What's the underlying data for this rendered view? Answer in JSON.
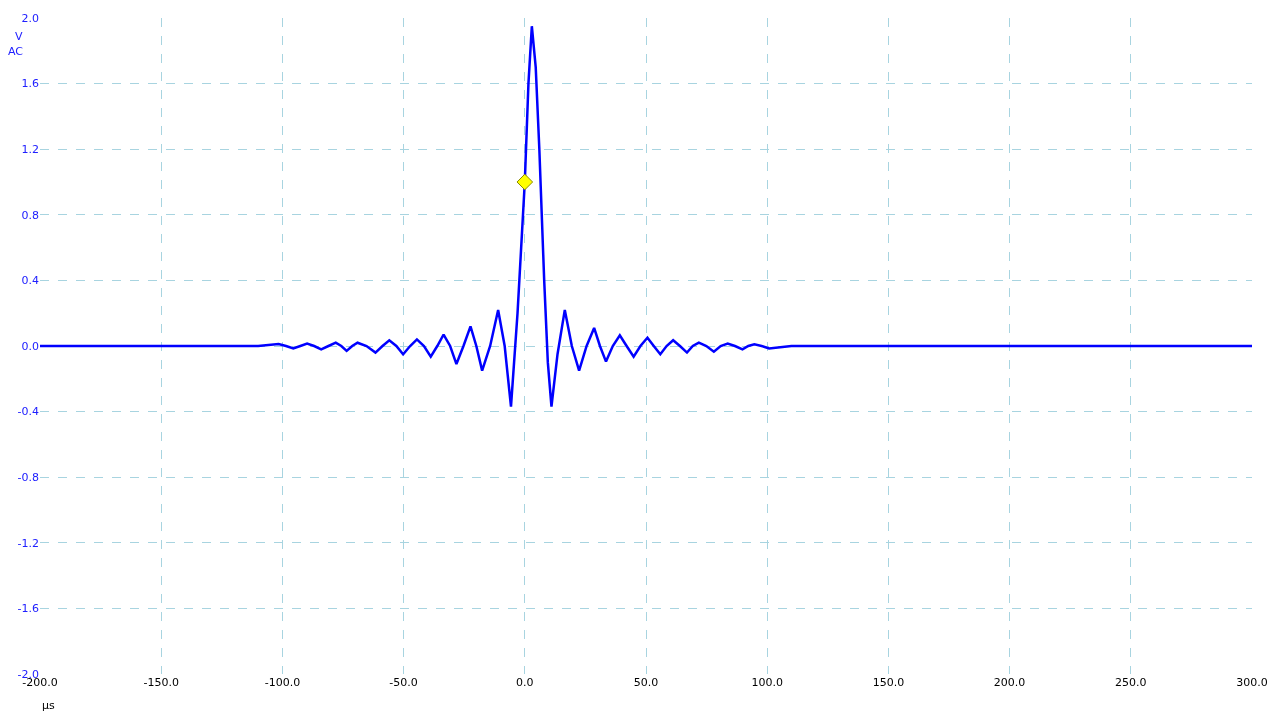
{
  "chart_data": {
    "type": "line",
    "xlabel": "μs",
    "ylabel": "V",
    "annotations": [
      "AC"
    ],
    "xlim": [
      -200,
      300
    ],
    "xticks": [
      {
        "value": -200,
        "label": "-200.0"
      },
      {
        "value": -150,
        "label": "-150.0"
      },
      {
        "value": -100,
        "label": "-100.0"
      },
      {
        "value": -50,
        "label": "-50.0"
      },
      {
        "value": 0,
        "label": "0.0"
      },
      {
        "value": 50,
        "label": "50.0"
      },
      {
        "value": 100,
        "label": "100.0"
      },
      {
        "value": 150,
        "label": "150.0"
      },
      {
        "value": 200,
        "label": "200.0"
      },
      {
        "value": 250,
        "label": "250.0"
      },
      {
        "value": 300,
        "label": "300.0"
      }
    ],
    "ylim": [
      -2.0,
      2.0
    ],
    "yticks": [
      {
        "value": -2.0,
        "label": "-2.0"
      },
      {
        "value": -1.6,
        "label": "-1.6"
      },
      {
        "value": -1.2,
        "label": "-1.2"
      },
      {
        "value": -0.8,
        "label": "-0.8"
      },
      {
        "value": -0.4,
        "label": "-0.4"
      },
      {
        "value": 0,
        "label": "0.0"
      },
      {
        "value": 0.4,
        "label": "0.4"
      },
      {
        "value": 0.8,
        "label": "0.8"
      },
      {
        "value": 1.2,
        "label": "1.2"
      },
      {
        "value": 1.6,
        "label": "1.6"
      },
      {
        "value": 2.0,
        "label": "2.0"
      }
    ],
    "grid": true,
    "line_style": "solid",
    "series": [
      {
        "color": "#0000ff",
        "marker": "none",
        "x": [
          -200,
          -180,
          -160,
          -140,
          -120,
          -110,
          -101.6,
          -98.5,
          -95.5,
          -92.6,
          -89.8,
          -86.9,
          -84,
          -81,
          -78,
          -75.7,
          -73.5,
          -71.2,
          -69,
          -65.3,
          -61.6,
          -58.7,
          -55.9,
          -53,
          -50.2,
          -47.3,
          -44.5,
          -41.6,
          -38.8,
          -36.1,
          -33.5,
          -30.8,
          -28.2,
          -25.3,
          -22.4,
          -20,
          -17.6,
          -14.3,
          -11,
          -8.3,
          -5.7,
          -3,
          -1.5,
          0,
          1.5,
          2.9,
          4.5,
          6,
          8,
          9.5,
          11,
          13.5,
          16.5,
          19.4,
          22.4,
          25.5,
          28.6,
          31,
          33.5,
          36.3,
          39.2,
          42,
          44.9,
          47.7,
          50.6,
          53.2,
          55.9,
          58.5,
          61.2,
          64,
          66.9,
          69.3,
          71.8,
          74.9,
          78,
          80.8,
          83.7,
          86.7,
          89.8,
          92.2,
          94.7,
          97.7,
          100.8,
          110,
          130,
          160,
          200,
          250,
          300
        ],
        "values": [
          0,
          0,
          0,
          0,
          0,
          0,
          0.012,
          0,
          -0.015,
          0,
          0.015,
          0,
          -0.02,
          0,
          0.02,
          0,
          -0.03,
          0,
          0.02,
          0,
          -0.04,
          0,
          0.035,
          0,
          -0.05,
          0,
          0.04,
          0,
          -0.065,
          0,
          0.07,
          0,
          -0.11,
          0,
          0.12,
          0,
          -0.15,
          0,
          0.22,
          0,
          -0.37,
          0.2,
          0.6,
          1.0,
          1.6,
          1.95,
          1.7,
          1.2,
          0.4,
          -0.1,
          -0.37,
          -0.05,
          0.22,
          0,
          -0.15,
          0,
          0.11,
          0,
          -0.095,
          0,
          0.065,
          0,
          -0.065,
          0,
          0.05,
          0,
          -0.05,
          0,
          0.035,
          0,
          -0.04,
          0,
          0.02,
          0,
          -0.035,
          0,
          0.015,
          0,
          -0.02,
          0,
          0.01,
          0,
          -0.015,
          0,
          0,
          0,
          0,
          0,
          0
        ]
      },
      {
        "type": "scatter",
        "color": "#ffff00",
        "marker": "diamond",
        "x": [
          0
        ],
        "values": [
          1.0
        ]
      }
    ]
  }
}
